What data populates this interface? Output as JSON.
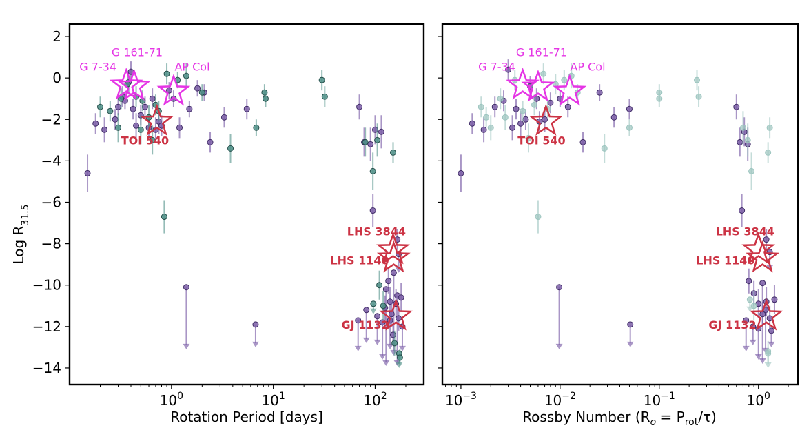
{
  "colors": {
    "purple": "#7b5ea7",
    "purple_dark": "#3f2b66",
    "teal": "#4e8f87",
    "teal_light": "#9cc5bf",
    "red": "#cc3344",
    "magenta": "#e535e5"
  },
  "chart_data": [
    {
      "type": "scatter",
      "panel": "left",
      "xlabel": "Rotation Period [days]",
      "ylabel": "Log R",
      "ylabel_sub": "31.5",
      "xscale": "log",
      "xlim": [
        0.1,
        300
      ],
      "ylim": [
        -14.8,
        2.6
      ],
      "xticks": [
        {
          "v": 1,
          "base": "10",
          "exp": "0"
        },
        {
          "v": 10,
          "base": "10",
          "exp": "1"
        },
        {
          "v": 100,
          "base": "10",
          "exp": "2"
        }
      ],
      "yticks": [
        "2",
        "0",
        "−2",
        "−4",
        "−6",
        "−8",
        "−10",
        "−12",
        "−14"
      ],
      "series": [
        {
          "style": "purple",
          "points": [
            [
              0.15,
              -4.6,
              0.9
            ],
            [
              0.18,
              -2.2,
              0.5
            ],
            [
              0.22,
              -2.5,
              0.6
            ],
            [
              0.28,
              -2.0,
              0.5
            ],
            [
              0.3,
              -1.4,
              0.4
            ],
            [
              0.33,
              -0.9,
              0.5
            ],
            [
              0.35,
              -1.1,
              0.4
            ],
            [
              0.38,
              -0.2,
              0.6
            ],
            [
              0.4,
              0.3,
              0.5
            ],
            [
              0.42,
              -1.5,
              0.5
            ],
            [
              0.45,
              -2.3,
              0.6
            ],
            [
              0.5,
              -1.8,
              0.5
            ],
            [
              0.55,
              -1.4,
              0.5
            ],
            [
              0.6,
              -2.4,
              0.6
            ],
            [
              0.65,
              -1.0,
              0.5
            ],
            [
              0.7,
              -2.5,
              0.6
            ],
            [
              0.75,
              -2.1,
              0.6
            ],
            [
              0.8,
              -2.3,
              0.5
            ],
            [
              0.95,
              -0.6,
              0.4
            ],
            [
              1.05,
              -1.0,
              0.4
            ],
            [
              1.2,
              -2.4,
              0.5
            ],
            [
              1.5,
              -1.5,
              0.4
            ],
            [
              1.8,
              -0.5,
              0.4
            ],
            [
              2.1,
              -0.7,
              0.4
            ],
            [
              2.4,
              -3.1,
              0.5
            ],
            [
              3.3,
              -1.9,
              0.5
            ],
            [
              5.5,
              -1.5,
              0.5
            ],
            [
              70,
              -1.4,
              0.6
            ],
            [
              78,
              -3.1,
              0.7
            ],
            [
              90,
              -3.2,
              0.8
            ],
            [
              95,
              -6.4,
              0.8
            ],
            [
              100,
              -2.5,
              0.7
            ],
            [
              115,
              -2.6,
              0.8
            ],
            [
              125,
              -11.1,
              0.6
            ],
            [
              135,
              -9.8,
              0.6
            ],
            [
              140,
              -10.8,
              0.7
            ],
            [
              145,
              -11.4,
              0.6
            ],
            [
              150,
              -12.4,
              0.5
            ],
            [
              160,
              -10.9,
              0.7
            ],
            [
              170,
              -11.6,
              0.6
            ],
            [
              180,
              -10.6,
              0.7
            ],
            [
              165,
              -7.8,
              0.5
            ]
          ]
        },
        {
          "style": "teal",
          "points": [
            [
              0.2,
              -1.4,
              0.5
            ],
            [
              0.25,
              -1.6,
              0.5
            ],
            [
              0.3,
              -2.4,
              0.7
            ],
            [
              0.32,
              -1.0,
              0.5
            ],
            [
              0.37,
              -0.3,
              0.4
            ],
            [
              0.45,
              -0.9,
              0.5
            ],
            [
              0.5,
              -2.5,
              0.7
            ],
            [
              0.52,
              -1.1,
              0.5
            ],
            [
              0.6,
              -1.9,
              0.6
            ],
            [
              0.65,
              -3.0,
              0.7
            ],
            [
              0.7,
              -1.3,
              0.5
            ],
            [
              0.75,
              -1.6,
              0.5
            ],
            [
              0.85,
              -6.7,
              0.8
            ],
            [
              0.9,
              0.2,
              0.5
            ],
            [
              1.15,
              -0.1,
              0.4
            ],
            [
              1.4,
              0.1,
              0.6
            ],
            [
              2.0,
              -0.7,
              0.4
            ],
            [
              3.8,
              -3.4,
              0.7
            ],
            [
              6.8,
              -2.4,
              0.4
            ],
            [
              8.2,
              -0.7,
              0.4
            ],
            [
              8.4,
              -1.0,
              0.4
            ],
            [
              30,
              -0.1,
              0.5
            ],
            [
              32,
              -0.9,
              0.5
            ],
            [
              80,
              -3.1,
              0.7
            ],
            [
              95,
              -4.5,
              0.9
            ],
            [
              105,
              -3.0,
              0.8
            ],
            [
              150,
              -3.6,
              0.5
            ],
            [
              110,
              -10.0,
              0.7
            ],
            [
              120,
              -11.0,
              0.7
            ],
            [
              155,
              -12.8,
              0.6
            ],
            [
              175,
              -13.5,
              0.4
            ]
          ]
        }
      ],
      "upper_limits": [
        {
          "x": 1.4,
          "y": -10.1,
          "to": -13.1,
          "style": "purple"
        },
        {
          "x": 6.7,
          "y": -11.9,
          "to": -13.0,
          "style": "purple"
        },
        {
          "x": 68,
          "y": -11.7,
          "to": -13.2,
          "style": "purple"
        },
        {
          "x": 82,
          "y": -11.2,
          "to": -12.8,
          "style": "purple"
        },
        {
          "x": 105,
          "y": -11.5,
          "to": -12.9,
          "style": "purple"
        },
        {
          "x": 118,
          "y": -11.8,
          "to": -13.6,
          "style": "purple"
        },
        {
          "x": 128,
          "y": -10.2,
          "to": -13.9,
          "style": "purple"
        },
        {
          "x": 140,
          "y": -11.7,
          "to": -13.1,
          "style": "purple"
        },
        {
          "x": 152,
          "y": -9.4,
          "to": -13.4,
          "style": "purple"
        },
        {
          "x": 165,
          "y": -10.5,
          "to": -13.9,
          "style": "purple"
        },
        {
          "x": 185,
          "y": -12.0,
          "to": -13.2,
          "style": "purple"
        },
        {
          "x": 170,
          "y": -8.5,
          "to": -9.4,
          "style": "purple"
        },
        {
          "x": 96,
          "y": -10.9,
          "to": -11.4,
          "style": "teal"
        },
        {
          "x": 172,
          "y": -13.3,
          "to": -14.0,
          "style": "teal"
        }
      ],
      "stars": [
        {
          "label": "G 7-34",
          "x": 0.36,
          "y": -0.35,
          "style": "magenta",
          "label_x": 0.19,
          "label_y": 0.55,
          "align": "middle"
        },
        {
          "label": "G 161-71",
          "x": 0.43,
          "y": -0.4,
          "style": "magenta",
          "label_x": 0.46,
          "label_y": 1.25,
          "align": "middle"
        },
        {
          "label": "AP Col",
          "x": 1.05,
          "y": -0.65,
          "style": "magenta",
          "label_x": 1.6,
          "label_y": 0.55,
          "align": "middle"
        },
        {
          "label": "TOI 540",
          "x": 0.72,
          "y": -2.1,
          "style": "red",
          "label_x": 0.55,
          "label_y": -3.0,
          "align": "middle"
        },
        {
          "label": "LHS 3844",
          "x": 150,
          "y": -8.3,
          "style": "red",
          "label_x": 200,
          "label_y": -7.4,
          "align": "end"
        },
        {
          "label": "LHS 1140",
          "x": 152,
          "y": -8.7,
          "style": "red",
          "label_x": 137,
          "label_y": -8.8,
          "align": "end"
        },
        {
          "label": "GJ 1132",
          "x": 160,
          "y": -11.5,
          "style": "red",
          "label_x": 137,
          "label_y": -11.9,
          "align": "end"
        }
      ]
    },
    {
      "type": "scatter",
      "panel": "right",
      "xlabel": "Rossby Number (R",
      "xlabel_o": "o",
      "xlabel_mid": " = P",
      "xlabel_rot": "rot",
      "xlabel_end": "/τ)",
      "xscale": "log",
      "xlim": [
        0.00065,
        2.5
      ],
      "ylim": [
        -14.8,
        2.6
      ],
      "xticks": [
        {
          "v": 0.001,
          "base": "10",
          "exp": "−3"
        },
        {
          "v": 0.01,
          "base": "10",
          "exp": "−2"
        },
        {
          "v": 0.1,
          "base": "10",
          "exp": "−1"
        },
        {
          "v": 1,
          "base": "10",
          "exp": "0"
        }
      ],
      "series": [
        {
          "style": "purple",
          "points": [
            [
              0.001,
              -4.6,
              0.9
            ],
            [
              0.0013,
              -2.2,
              0.5
            ],
            [
              0.0017,
              -2.5,
              0.6
            ],
            [
              0.0022,
              -1.4,
              0.5
            ],
            [
              0.0027,
              -1.1,
              0.5
            ],
            [
              0.003,
              0.4,
              0.5
            ],
            [
              0.0033,
              -2.4,
              0.6
            ],
            [
              0.0036,
              -1.5,
              0.5
            ],
            [
              0.004,
              -2.2,
              0.6
            ],
            [
              0.0045,
              -2.0,
              0.5
            ],
            [
              0.005,
              -0.4,
              0.5
            ],
            [
              0.0058,
              -1.0,
              0.5
            ],
            [
              0.0062,
              -2.1,
              0.5
            ],
            [
              0.007,
              -2.0,
              0.6
            ],
            [
              0.008,
              -1.2,
              0.5
            ],
            [
              0.01,
              -1.0,
              0.4
            ],
            [
              0.012,
              -1.4,
              0.5
            ],
            [
              0.017,
              -3.1,
              0.5
            ],
            [
              0.025,
              -0.7,
              0.4
            ],
            [
              0.035,
              -1.9,
              0.5
            ],
            [
              0.05,
              -1.5,
              0.5
            ],
            [
              0.6,
              -1.4,
              0.6
            ],
            [
              0.65,
              -3.1,
              0.7
            ],
            [
              0.68,
              -6.4,
              0.8
            ],
            [
              0.78,
              -3.2,
              0.8
            ],
            [
              0.8,
              -9.8,
              0.6
            ],
            [
              0.9,
              -10.4,
              0.6
            ],
            [
              1.0,
              -10.9,
              0.7
            ],
            [
              1.1,
              -11.4,
              0.6
            ],
            [
              1.2,
              -10.8,
              0.7
            ],
            [
              1.3,
              -11.6,
              0.6
            ],
            [
              1.45,
              -10.7,
              0.7
            ],
            [
              1.2,
              -7.8,
              0.5
            ],
            [
              0.72,
              -2.6,
              0.7
            ]
          ]
        },
        {
          "style": "teal_light",
          "points": [
            [
              0.0016,
              -1.4,
              0.5
            ],
            [
              0.0018,
              -1.9,
              0.5
            ],
            [
              0.002,
              -2.4,
              0.6
            ],
            [
              0.0025,
              -1.0,
              0.5
            ],
            [
              0.0028,
              -1.9,
              0.6
            ],
            [
              0.0035,
              -0.1,
              0.5
            ],
            [
              0.0042,
              -1.6,
              0.5
            ],
            [
              0.0048,
              -2.9,
              0.7
            ],
            [
              0.0055,
              -1.3,
              0.5
            ],
            [
              0.006,
              -6.7,
              0.8
            ],
            [
              0.0068,
              0.2,
              0.5
            ],
            [
              0.0075,
              -1.5,
              0.5
            ],
            [
              0.009,
              -0.3,
              0.5
            ],
            [
              0.011,
              -0.1,
              0.5
            ],
            [
              0.013,
              0.1,
              0.6
            ],
            [
              0.015,
              -0.7,
              0.4
            ],
            [
              0.028,
              -3.4,
              0.7
            ],
            [
              0.05,
              -2.4,
              0.4
            ],
            [
              0.1,
              -0.7,
              0.4
            ],
            [
              0.1,
              -1.0,
              0.4
            ],
            [
              0.24,
              -0.1,
              0.5
            ],
            [
              0.25,
              -0.9,
              0.5
            ],
            [
              0.7,
              -2.4,
              0.8
            ],
            [
              0.78,
              -3.0,
              0.8
            ],
            [
              0.85,
              -4.5,
              0.9
            ],
            [
              1.25,
              -3.6,
              0.5
            ],
            [
              1.3,
              -2.4,
              0.5
            ],
            [
              0.9,
              -11.0,
              0.7
            ],
            [
              1.25,
              -13.2,
              0.5
            ]
          ]
        }
      ],
      "upper_limits": [
        {
          "x": 0.0098,
          "y": -10.1,
          "to": -13.1,
          "style": "purple"
        },
        {
          "x": 0.051,
          "y": -11.9,
          "to": -13.0,
          "style": "purple"
        },
        {
          "x": 0.75,
          "y": -11.7,
          "to": -13.2,
          "style": "purple"
        },
        {
          "x": 0.88,
          "y": -12.0,
          "to": -12.9,
          "style": "purple"
        },
        {
          "x": 1.0,
          "y": -12.1,
          "to": -13.6,
          "style": "purple"
        },
        {
          "x": 1.1,
          "y": -9.9,
          "to": -13.8,
          "style": "purple"
        },
        {
          "x": 1.18,
          "y": -11.2,
          "to": -13.3,
          "style": "purple"
        },
        {
          "x": 1.35,
          "y": -12.2,
          "to": -13.0,
          "style": "purple"
        },
        {
          "x": 1.3,
          "y": -8.4,
          "to": -9.3,
          "style": "purple"
        },
        {
          "x": 0.82,
          "y": -10.7,
          "to": -11.3,
          "style": "teal_light"
        },
        {
          "x": 1.25,
          "y": -13.3,
          "to": -14.0,
          "style": "teal_light"
        }
      ],
      "stars": [
        {
          "label": "G 7-34",
          "x": 0.0042,
          "y": -0.35,
          "style": "magenta",
          "label_x": 0.0023,
          "label_y": 0.55,
          "align": "middle"
        },
        {
          "label": "G 161-71",
          "x": 0.006,
          "y": -0.45,
          "style": "magenta",
          "label_x": 0.0065,
          "label_y": 1.25,
          "align": "middle"
        },
        {
          "label": "AP Col",
          "x": 0.0125,
          "y": -0.65,
          "style": "magenta",
          "label_x": 0.019,
          "label_y": 0.55,
          "align": "middle"
        },
        {
          "label": "TOI 540",
          "x": 0.0072,
          "y": -2.1,
          "style": "red",
          "label_x": 0.0065,
          "label_y": -3.0,
          "align": "middle"
        },
        {
          "label": "LHS 3844",
          "x": 1.0,
          "y": -8.3,
          "style": "red",
          "label_x": 1.45,
          "label_y": -7.4,
          "align": "end"
        },
        {
          "label": "LHS 1140",
          "x": 1.1,
          "y": -8.7,
          "style": "red",
          "label_x": 0.92,
          "label_y": -8.8,
          "align": "end"
        },
        {
          "label": "GJ 1132",
          "x": 1.2,
          "y": -11.5,
          "style": "red",
          "label_x": 0.95,
          "label_y": -11.9,
          "align": "end"
        }
      ]
    }
  ]
}
